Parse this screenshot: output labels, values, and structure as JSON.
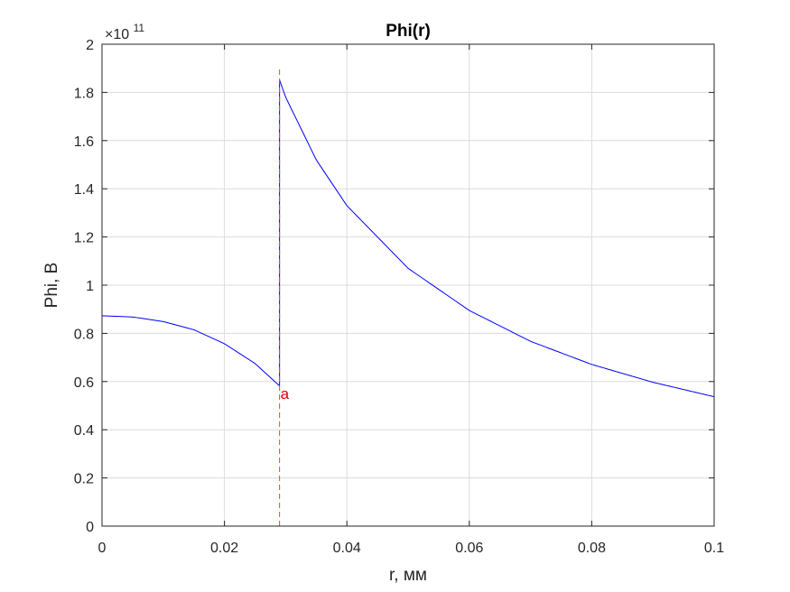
{
  "chart_data": {
    "type": "line",
    "title": "Phi(r)",
    "xlabel": "r, мм",
    "ylabel": "Phi, В",
    "y_multiplier_base": "×10",
    "y_multiplier_exp": "11",
    "xlim": [
      0,
      0.1
    ],
    "ylim": [
      0,
      2
    ],
    "xticks": [
      0,
      0.02,
      0.04,
      0.06,
      0.08,
      0.1
    ],
    "xtick_labels": [
      "0",
      "0.02",
      "0.04",
      "0.06",
      "0.08",
      "0.1"
    ],
    "yticks": [
      0,
      0.2,
      0.4,
      0.6,
      0.8,
      1,
      1.2,
      1.4,
      1.6,
      1.8,
      2
    ],
    "ytick_labels": [
      "0",
      "0.2",
      "0.4",
      "0.6",
      "0.8",
      "1",
      "1.2",
      "1.4",
      "1.6",
      "1.8",
      "2"
    ],
    "grid": true,
    "series": [
      {
        "color": "#0000ff",
        "style": "solid",
        "x": [
          0,
          0.005,
          0.01,
          0.015,
          0.02,
          0.025,
          0.029,
          0.029,
          0.03,
          0.035,
          0.04,
          0.05,
          0.06,
          0.07,
          0.08,
          0.09,
          0.1
        ],
        "y": [
          0.873,
          0.868,
          0.849,
          0.815,
          0.757,
          0.675,
          0.582,
          1.852,
          1.78,
          1.52,
          1.33,
          1.07,
          0.895,
          0.767,
          0.671,
          0.597,
          0.537
        ]
      }
    ],
    "annotations": [
      {
        "type": "vline",
        "x": 0.029,
        "y_range": [
          0,
          1.895
        ],
        "color": "#d95319",
        "style": "dashed"
      },
      {
        "type": "text",
        "text": "a",
        "x": 0.029,
        "y": 0.54,
        "color": "#e00000"
      }
    ]
  }
}
